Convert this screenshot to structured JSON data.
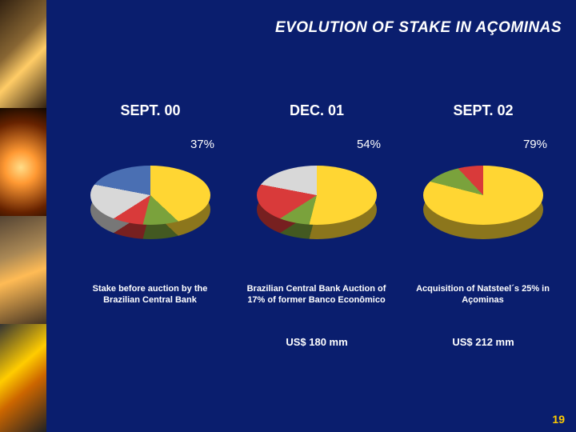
{
  "title": "EVOLUTION OF STAKE IN AÇOMINAS",
  "page_number": "19",
  "background_color": "#0a1e6e",
  "sidebar_images": [
    {
      "gradient": "linear-gradient(135deg,#332211 0%,#886633 40%,#ffcc66 60%,#332211 100%)"
    },
    {
      "gradient": "radial-gradient(circle at 45% 55%, #ffdd88 0%, #ff9933 25%, #662200 70%, #110800 100%)"
    },
    {
      "gradient": "linear-gradient(160deg,#554433 0%,#aa8855 35%,#ffbb55 55%,#443322 100%)"
    },
    {
      "gradient": "linear-gradient(140deg,#333333 0%,#ffcc00 40%,#cc6600 60%,#222222 100%)"
    }
  ],
  "columns": [
    {
      "date": "SEPT. 00",
      "percent": "37%",
      "caption": "Stake before auction by the Brazilian Central Bank",
      "amount": "",
      "pie": {
        "type": "pie",
        "slices": [
          {
            "color": "#ffd633",
            "pct": 37
          },
          {
            "color": "#7aa23c",
            "pct": 17
          },
          {
            "color": "#d93a3a",
            "pct": 12
          },
          {
            "color": "#d8d8d8",
            "pct": 12
          },
          {
            "color": "#4a6fb3",
            "pct": 22
          }
        ]
      }
    },
    {
      "date": "DEC. 01",
      "percent": "54%",
      "caption": "Brazilian Central Bank Auction of 17% of former Banco Econômico",
      "amount": "US$ 180 mm",
      "pie": {
        "type": "pie",
        "slices": [
          {
            "color": "#ffd633",
            "pct": 54
          },
          {
            "color": "#7aa23c",
            "pct": 12
          },
          {
            "color": "#d93a3a",
            "pct": 12
          },
          {
            "color": "#d8d8d8",
            "pct": 22
          }
        ]
      }
    },
    {
      "date": "SEPT. 02",
      "percent": "79%",
      "caption": "Acquisition of Natsteel´s 25% in Açominas",
      "amount": "US$ 212 mm",
      "pie": {
        "type": "pie",
        "slices": [
          {
            "color": "#ffd633",
            "pct": 79
          },
          {
            "color": "#7aa23c",
            "pct": 9
          },
          {
            "color": "#d93a3a",
            "pct": 12
          }
        ]
      }
    }
  ]
}
